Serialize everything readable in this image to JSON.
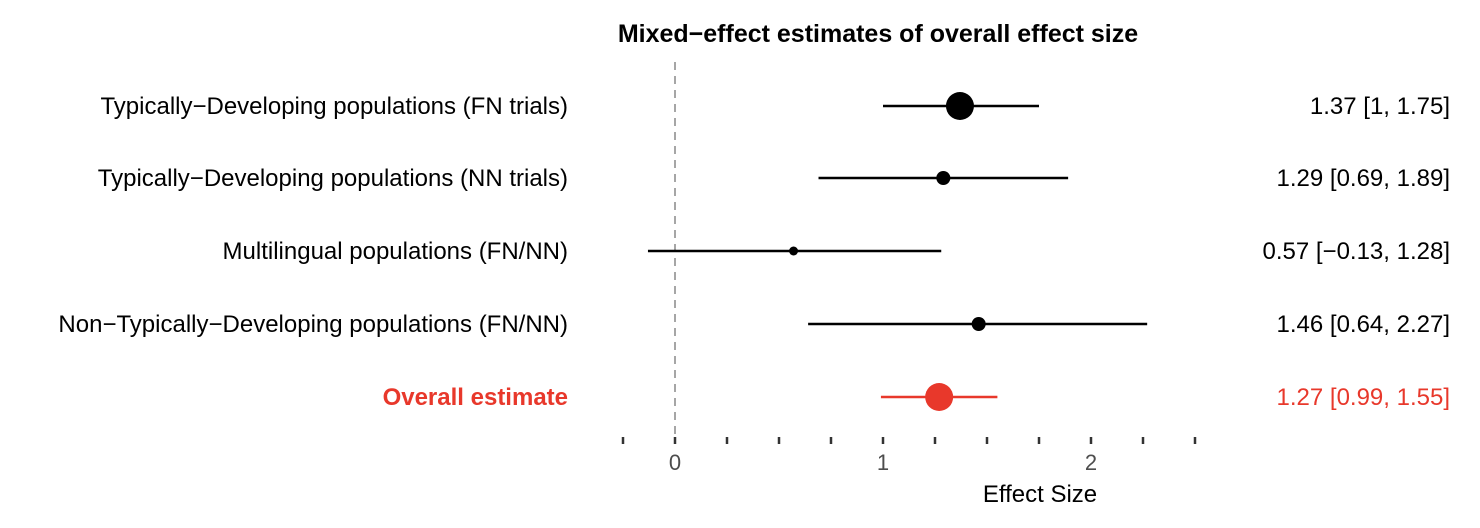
{
  "chart_data": {
    "type": "forest",
    "title": "Mixed−effect estimates of overall effect size",
    "xlabel": "Effect Size",
    "xlim": [
      -0.25,
      2.5
    ],
    "xticks": [
      "0",
      "1",
      "2"
    ],
    "xtick_values": [
      0,
      1,
      2
    ],
    "minor_tick_values": [
      -0.25,
      0.25,
      0.5,
      0.75,
      1.25,
      1.5,
      1.75,
      2.25,
      2.5
    ],
    "reference_line": 0,
    "rows": [
      {
        "label": "Typically−Developing populations (FN trials)",
        "estimate": 1.37,
        "lower": 1,
        "upper": 1.75,
        "display": "1.37  [1, 1.75]",
        "color": "#000000",
        "bold": false,
        "point_size": "large"
      },
      {
        "label": "Typically−Developing populations (NN trials)",
        "estimate": 1.29,
        "lower": 0.69,
        "upper": 1.89,
        "display": "1.29  [0.69, 1.89]",
        "color": "#000000",
        "bold": false,
        "point_size": "medium"
      },
      {
        "label": "Multilingual populations (FN/NN)",
        "estimate": 0.57,
        "lower": -0.13,
        "upper": 1.28,
        "display": "0.57  [−0.13, 1.28]",
        "color": "#000000",
        "bold": false,
        "point_size": "small"
      },
      {
        "label": "Non−Typically−Developing populations (FN/NN)",
        "estimate": 1.46,
        "lower": 0.64,
        "upper": 2.27,
        "display": "1.46  [0.64, 2.27]",
        "color": "#000000",
        "bold": false,
        "point_size": "medium"
      },
      {
        "label": "Overall estimate",
        "estimate": 1.27,
        "lower": 0.99,
        "upper": 1.55,
        "display": "1.27  [0.99, 1.55]",
        "color": "#e8382b",
        "bold": true,
        "point_size": "large"
      }
    ]
  }
}
